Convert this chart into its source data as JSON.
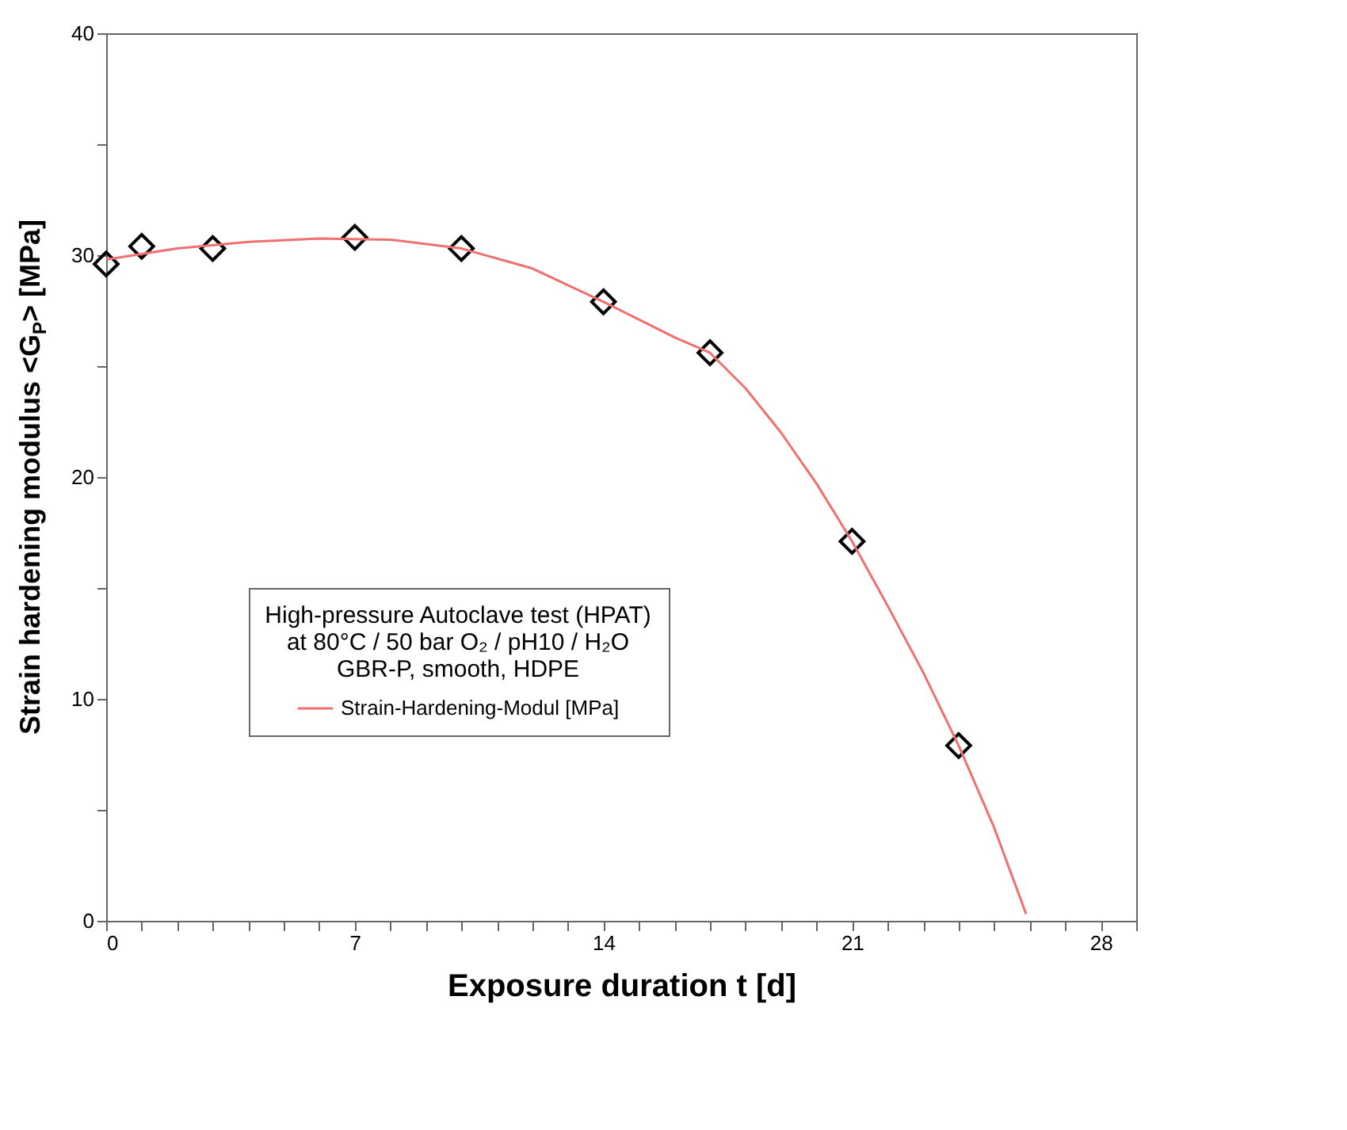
{
  "chart_data": {
    "type": "scatter",
    "xlabel": "Exposure duration t [d]",
    "ylabel": "Strain hardening modulus <G$_{P}$> [MPa]",
    "legend_title": "High-pressure Autoclave test (HPAT)\nat 80°C / 50 bar O₂ / pH10 / H₂O\nGBR-P, smooth, HDPE",
    "series": [
      {
        "color": "#000000",
        "marker": "diamond",
        "x": [
          0,
          1,
          3,
          7,
          10,
          14,
          17,
          21,
          24
        ],
        "values": [
          29.6,
          30.4,
          30.3,
          30.8,
          30.3,
          27.9,
          25.6,
          17.1,
          7.9
        ]
      },
      {
        "type": "line",
        "name": "Strain-Hardening-Modul [MPa]",
        "color": "#f07070",
        "marker": "none",
        "line_style": "solid",
        "x": [
          0,
          2,
          4,
          6,
          8,
          10,
          12,
          14,
          16,
          17,
          18,
          19,
          20,
          21,
          22,
          23,
          24,
          25,
          25.9
        ],
        "values": [
          29.8,
          30.3,
          30.6,
          30.75,
          30.7,
          30.3,
          29.4,
          27.9,
          26.3,
          25.6,
          24.0,
          22.0,
          19.7,
          17.1,
          14.2,
          11.2,
          7.9,
          4.2,
          0.3
        ]
      }
    ],
    "xlim": [
      0,
      29
    ],
    "xticks": [
      0,
      {
        "value": 1,
        "label": null
      },
      {
        "value": 2,
        "label": null
      },
      {
        "value": 3,
        "label": null
      },
      {
        "value": 4,
        "label": null
      },
      {
        "value": 5,
        "label": null
      },
      {
        "value": 6,
        "label": null
      },
      7,
      {
        "value": 8,
        "label": null
      },
      {
        "value": 9,
        "label": null
      },
      {
        "value": 10,
        "label": null
      },
      {
        "value": 11,
        "label": null
      },
      {
        "value": 12,
        "label": null
      },
      {
        "value": 13,
        "label": null
      },
      14,
      {
        "value": 15,
        "label": null
      },
      {
        "value": 16,
        "label": null
      },
      {
        "value": 17,
        "label": null
      },
      {
        "value": 18,
        "label": null
      },
      {
        "value": 19,
        "label": null
      },
      {
        "value": 20,
        "label": null
      },
      21,
      {
        "value": 22,
        "label": null
      },
      {
        "value": 23,
        "label": null
      },
      {
        "value": 24,
        "label": null
      },
      {
        "value": 25,
        "label": null
      },
      {
        "value": 26,
        "label": null
      },
      {
        "value": 27,
        "label": null
      },
      28,
      {
        "value": 29,
        "label": null
      }
    ],
    "ylim": [
      0,
      40
    ],
    "yticks": [
      0,
      {
        "value": 5,
        "label": null
      },
      10,
      {
        "value": 15,
        "label": null
      },
      20,
      {
        "value": 25,
        "label": null
      },
      30,
      {
        "value": 35,
        "label": null
      },
      40
    ],
    "grid": false,
    "legend": "bottom left"
  }
}
